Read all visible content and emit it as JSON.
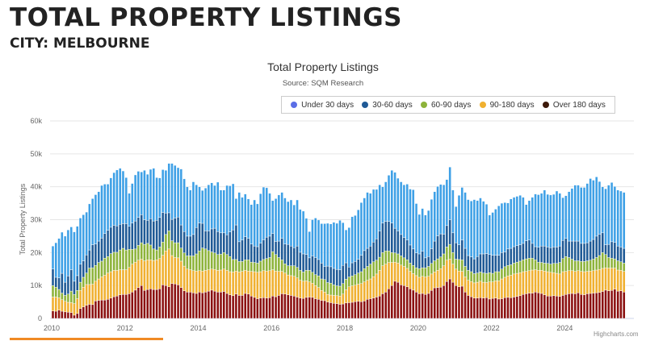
{
  "header": {
    "title": "TOTAL PROPERTY LISTINGS",
    "subtitle": "CITY: MELBOURNE"
  },
  "credit": "Highcharts.com",
  "chart_data": {
    "type": "bar",
    "stacked": true,
    "title": "Total Property Listings",
    "subtitle": "Source: SQM Research",
    "ylabel": "Total Property Listings",
    "ylim": [
      0,
      60000
    ],
    "yticks": [
      "0",
      "10k",
      "20k",
      "30k",
      "40k",
      "50k",
      "60k"
    ],
    "xticks": [
      "2010",
      "2012",
      "2014",
      "2016",
      "2018",
      "2020",
      "2022",
      "2024"
    ],
    "x_start": "2010-01",
    "x_end": "2025-08",
    "frequency": "monthly",
    "grid": true,
    "legend_position": "top-right",
    "series": [
      {
        "name": "Under 30 days",
        "color": "#3ea0e6",
        "legend_color": "#5b6ee6",
        "values": [
          7,
          10.5,
          12,
          12.5,
          14,
          14,
          13,
          15,
          15,
          14,
          14,
          13,
          14,
          14,
          15,
          15,
          16,
          15,
          14,
          15,
          16,
          17,
          17,
          16,
          14,
          10,
          12,
          14,
          14,
          13,
          15,
          14,
          15,
          16,
          13,
          12,
          13,
          13,
          15,
          17,
          16,
          15,
          17,
          16,
          15,
          14,
          16,
          13,
          11,
          10,
          13,
          14,
          14,
          13,
          15,
          13,
          13,
          15,
          14,
          14,
          8,
          15,
          13,
          13,
          12,
          12,
          14,
          13,
          15,
          16,
          15,
          13,
          10,
          13,
          14,
          14,
          14,
          13,
          14,
          13,
          14,
          13,
          13,
          11,
          8,
          11,
          12,
          12,
          12,
          13,
          13,
          13,
          14,
          14,
          15,
          13,
          10,
          12,
          14,
          14,
          15,
          16,
          16,
          17,
          16,
          16,
          15,
          14,
          11,
          12,
          14,
          16,
          17,
          16,
          16,
          16,
          17,
          17,
          18,
          15,
          12,
          13,
          13,
          14,
          15,
          15,
          15,
          15,
          15,
          14,
          16,
          13,
          11,
          15,
          16,
          17,
          17,
          17,
          18,
          17,
          17,
          16,
          15,
          12,
          13,
          14,
          15,
          15,
          15,
          14,
          15,
          15,
          15,
          15,
          14,
          11,
          12,
          14,
          16,
          16,
          16,
          17,
          16,
          16,
          16,
          17,
          16,
          13,
          13,
          15,
          16,
          17,
          17,
          17,
          17,
          18,
          19,
          18,
          18,
          16,
          14,
          17,
          18,
          18,
          17,
          17,
          17,
          17
        ]
      },
      {
        "name": "30-60 days",
        "color": "#1f5a96",
        "values": [
          5,
          3,
          3.5,
          6,
          4,
          5.5,
          6.5,
          4,
          4.5,
          5.5,
          5,
          5.5,
          5.5,
          7,
          6.5,
          6.5,
          7,
          7.5,
          8,
          8,
          8.2,
          8,
          7.8,
          7.5,
          8,
          7,
          8,
          8.5,
          8.5,
          8.5,
          7.5,
          7,
          8,
          8.5,
          9,
          9,
          9,
          6.5,
          5.5,
          6.5,
          7.5,
          7.8,
          7,
          6.5,
          6,
          6,
          6.5,
          8,
          8.5,
          7.5,
          5.5,
          6,
          7,
          7.5,
          7,
          6.5,
          6,
          6,
          7.5,
          9,
          10.5,
          6,
          6.5,
          7,
          6.5,
          5.5,
          5,
          5,
          5.5,
          6,
          6.5,
          6.5,
          5.5,
          4,
          5,
          6.5,
          6,
          6.5,
          6,
          5.5,
          6.5,
          5.5,
          5.5,
          4.8,
          3.8,
          5,
          5.2,
          5,
          4.8,
          4,
          5,
          5,
          5,
          5,
          5,
          5.5,
          5,
          3,
          4,
          4,
          4.2,
          5,
          5.5,
          5.5,
          5.5,
          6,
          6.5,
          8,
          9,
          9,
          9,
          9,
          7.5,
          7,
          6.5,
          6.2,
          6,
          5.5,
          5,
          4.5,
          4.5,
          5,
          3,
          3,
          4.5,
          6,
          7,
          7,
          6,
          6.5,
          7.5,
          6,
          5,
          4.5,
          6,
          5.5,
          4.5,
          4.5,
          4.5,
          5,
          5.5,
          5.8,
          6,
          5.5,
          5.5,
          5,
          5,
          5,
          4.5,
          5,
          5,
          5,
          5,
          5,
          5,
          5.5,
          5.5,
          4.5,
          4,
          4.5,
          5,
          5.2,
          5,
          5,
          5,
          5,
          5,
          5.5,
          5.5,
          5,
          5.5,
          6,
          6,
          5.5,
          5.5,
          5.5,
          5.8,
          6,
          6.5,
          6.5,
          6,
          3,
          4,
          5,
          5,
          4.5,
          4.5,
          4.5
        ]
      },
      {
        "name": "60-90 days",
        "color": "#8db33a",
        "values": [
          3.5,
          3,
          2.5,
          2,
          1.8,
          2.5,
          3.5,
          2.8,
          2.5,
          2.5,
          3,
          3.5,
          5,
          5,
          4.8,
          5,
          4.8,
          5.2,
          5,
          5.5,
          5.5,
          5.5,
          6,
          6.5,
          6,
          5.5,
          4.5,
          4,
          4.5,
          5,
          5,
          5,
          4.5,
          3.5,
          3,
          3.5,
          4,
          5,
          5.5,
          4.5,
          4.5,
          4.6,
          4,
          4,
          4,
          4.2,
          4.5,
          5.2,
          6,
          7,
          6.5,
          5.8,
          5.2,
          5,
          4.8,
          4.8,
          5,
          4.8,
          4.6,
          3.8,
          3.5,
          3.2,
          3,
          3.2,
          3.4,
          2.8,
          2.8,
          2.8,
          3.2,
          3.4,
          3.8,
          4,
          5.5,
          5,
          4.2,
          3.5,
          2.8,
          2.8,
          3,
          3.2,
          3.2,
          3,
          2.8,
          3.2,
          3.5,
          3.3,
          3.3,
          3.5,
          3.5,
          3.8,
          3.6,
          3.6,
          3.2,
          3,
          3,
          3.2,
          3.2,
          3,
          3,
          3.2,
          3.4,
          3.6,
          4,
          4.2,
          4.5,
          4.5,
          4.2,
          4,
          4,
          4,
          3.5,
          3,
          2.8,
          2.8,
          2.8,
          2.6,
          2.6,
          2.5,
          2.5,
          2.4,
          2.6,
          2.6,
          2.8,
          3,
          3.2,
          3.4,
          3.5,
          3.6,
          3.6,
          4,
          4.5,
          3.5,
          3,
          3.5,
          3.5,
          3.2,
          3,
          3,
          2.8,
          2.8,
          2.8,
          2.8,
          2.8,
          2.8,
          2.6,
          2.8,
          2.8,
          3,
          3.2,
          3.2,
          3.2,
          3.3,
          3.4,
          3.5,
          3.6,
          3.8,
          3.8,
          3.6,
          3,
          2.5,
          2.4,
          2.4,
          2.5,
          2.5,
          2.8,
          3,
          3.5,
          4,
          4.5,
          4,
          3.5,
          3.2,
          3,
          3,
          3.1,
          3.2,
          3.3,
          3.5,
          3.8,
          4.2,
          4.8,
          4,
          3.2,
          3,
          2.8,
          2.8,
          2.6,
          2.5
        ]
      },
      {
        "name": "90-180 days",
        "color": "#f0b030",
        "values": [
          4.2,
          4.3,
          3.8,
          3.5,
          3.2,
          3,
          3,
          3.5,
          4.5,
          5.5,
          6,
          6.3,
          6,
          6.2,
          6,
          6.5,
          7,
          7.5,
          8,
          8,
          8,
          7.8,
          7.6,
          7.5,
          7.5,
          8,
          8.5,
          8.5,
          8.3,
          8,
          9,
          9,
          8.8,
          8.8,
          9,
          9.2,
          9,
          10.5,
          11.5,
          8.5,
          8,
          8.2,
          8,
          7.5,
          7,
          6.8,
          6.7,
          6.8,
          6.5,
          6.6,
          6.6,
          6.5,
          6.4,
          6.6,
          6.6,
          6.7,
          6.8,
          7,
          7,
          7.2,
          7,
          7.1,
          7.3,
          7,
          7,
          7.5,
          7.8,
          8,
          8,
          8.2,
          8.2,
          8.2,
          8,
          7.8,
          7.3,
          6.8,
          6.4,
          6,
          6,
          6,
          5.8,
          5.4,
          5.2,
          5,
          4.6,
          4.3,
          4,
          3.6,
          3,
          2.6,
          2.3,
          2.3,
          2.4,
          2.4,
          2.5,
          3,
          4,
          4.8,
          5,
          5,
          5.2,
          5.5,
          5.8,
          5.8,
          6,
          6.5,
          7,
          7.8,
          8.5,
          8.5,
          8,
          7,
          5.8,
          5.8,
          6,
          5.8,
          5.6,
          5.3,
          5,
          5,
          5,
          5.2,
          5.3,
          5.2,
          5,
          4.8,
          5.2,
          5.6,
          6,
          6.5,
          6,
          5.5,
          5,
          4.8,
          4.5,
          4.6,
          4.6,
          4.6,
          4.6,
          4.8,
          5,
          4.8,
          4.6,
          5.2,
          5,
          5.2,
          5.5,
          6,
          6.2,
          6.5,
          6.8,
          7,
          7,
          7,
          6.9,
          6.8,
          6.8,
          7,
          6.8,
          6.8,
          7,
          7.2,
          7.4,
          7.2,
          7,
          6.9,
          6.8,
          7.2,
          7,
          7,
          6.9,
          6.8,
          6.7,
          7,
          7,
          6.8,
          6.8,
          6.8,
          6.9,
          7,
          7,
          6.8,
          6.9,
          6.8,
          6.4,
          6.4,
          6.2,
          6.3
        ]
      },
      {
        "name": "Over 180 days",
        "color": "#8b1010",
        "legend_color": "#3d1a0a",
        "values": [
          2.3,
          2.2,
          2.5,
          2.2,
          2,
          1.9,
          1.8,
          1,
          1.5,
          3,
          3.5,
          4,
          4.3,
          4.2,
          5.3,
          5.5,
          5.6,
          5.6,
          5.8,
          6.2,
          6.6,
          6.8,
          7.2,
          7.3,
          7.3,
          7.5,
          8,
          8.6,
          9.4,
          10,
          8.5,
          8.8,
          9,
          8.8,
          8.8,
          9,
          10.2,
          10,
          9.6,
          10.6,
          10.5,
          10.2,
          9.4,
          8.4,
          8,
          8,
          7.8,
          7.6,
          8,
          7.8,
          8,
          8.3,
          8.6,
          8.3,
          8,
          8,
          8.2,
          7.6,
          7.2,
          6.9,
          7.4,
          7,
          7,
          7.6,
          7.4,
          6.8,
          6.4,
          6,
          6.2,
          6.3,
          6.2,
          6.3,
          6.8,
          6.6,
          7,
          7.5,
          7.4,
          7.2,
          7,
          6.8,
          6.5,
          6.2,
          6.1,
          6.4,
          6.5,
          6.4,
          6,
          5.8,
          5.5,
          5.4,
          5,
          4.8,
          4.6,
          4.5,
          4.3,
          4.4,
          4.7,
          4.8,
          4.9,
          5.1,
          5.2,
          5.1,
          5.3,
          5.8,
          6,
          6.2,
          6.5,
          6.8,
          7.5,
          8,
          9,
          10,
          11.3,
          11,
          10.2,
          10,
          9.6,
          9,
          8.6,
          8,
          7.5,
          7.6,
          7.3,
          7.6,
          8.5,
          9.3,
          9.4,
          9.5,
          10,
          11.2,
          12,
          11,
          10,
          9.6,
          9.8,
          8,
          7,
          6.6,
          6.2,
          6.2,
          6.3,
          6.2,
          6.3,
          5.9,
          6.1,
          6.2,
          5.9,
          6,
          6.3,
          6.4,
          6.3,
          6.5,
          6.7,
          6.9,
          7.3,
          7.5,
          7.7,
          7.7,
          8,
          7.8,
          7.6,
          7.2,
          6.8,
          6.8,
          6.9,
          6.8,
          6.7,
          7,
          7.3,
          7.5,
          7.6,
          7.5,
          7.8,
          7.3,
          7.2,
          7.5,
          7.6,
          7.7,
          7.8,
          7.9,
          8.2,
          8.6,
          8.4,
          8.5,
          8.9,
          8.3,
          8.4,
          8
        ]
      }
    ],
    "value_scale_note_k": 1000
  }
}
